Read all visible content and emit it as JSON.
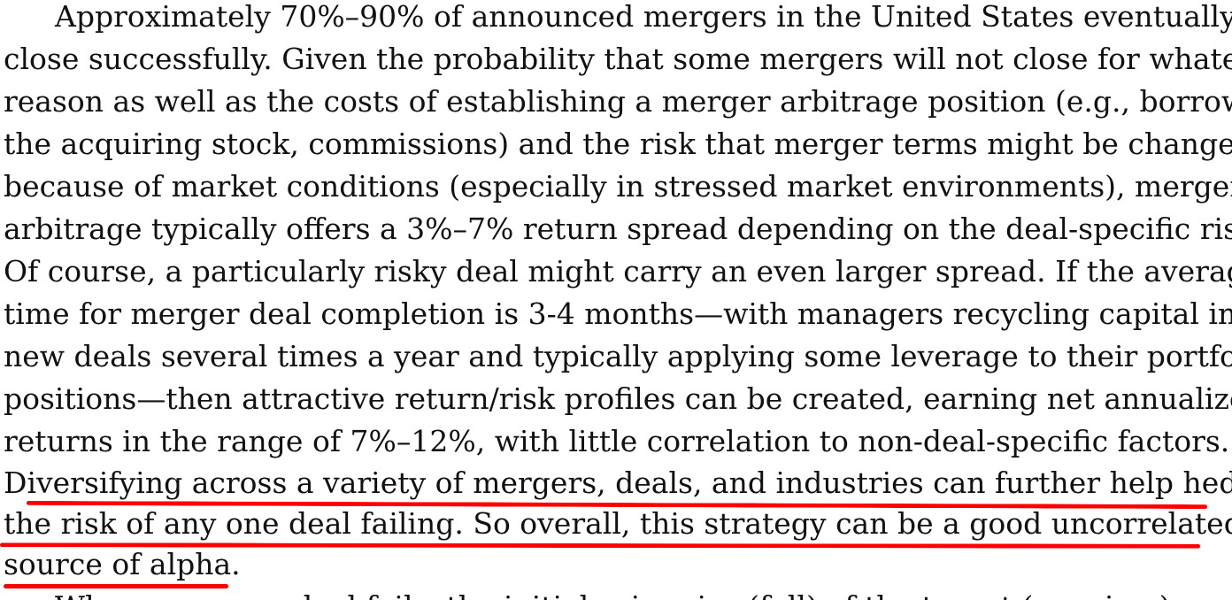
{
  "paragraph": {
    "lines": [
      "Approximately 70%–90% of announced mergers in the United States eventually",
      "close successfully. Given the probability that some mergers will not close for whatever",
      "reason as well as the costs of establishing a merger arbitrage position (e.g., borrowing",
      "the acquiring stock, commissions) and the risk that merger terms might be changed",
      "because of market conditions (especially in stressed market environments), merger",
      "arbitrage typically offers a 3%–7% return spread depending on the deal-specific risks.",
      "Of course, a particularly risky deal might carry an even larger spread. If the average",
      "time for merger deal completion is 3-4 months—with managers recycling capital into",
      "new deals several times a year and typically applying some leverage to their portfolio",
      "positions—then attractive return/risk profiles can be created, earning net annualized",
      "returns in the range of 7%–12%, with little correlation to non-deal-specific factors.",
      "Diversifying across a variety of mergers, deals, and industries can further help hedge",
      "the risk of any one deal failing. So overall, this strategy can be a good uncorrelated",
      "source of alpha."
    ],
    "partial_next_line": "When a merger deal fails, the initial price rise (fall) of the target (acquirer)"
  },
  "annotation": {
    "type": "underline",
    "color": "#ff0000"
  }
}
